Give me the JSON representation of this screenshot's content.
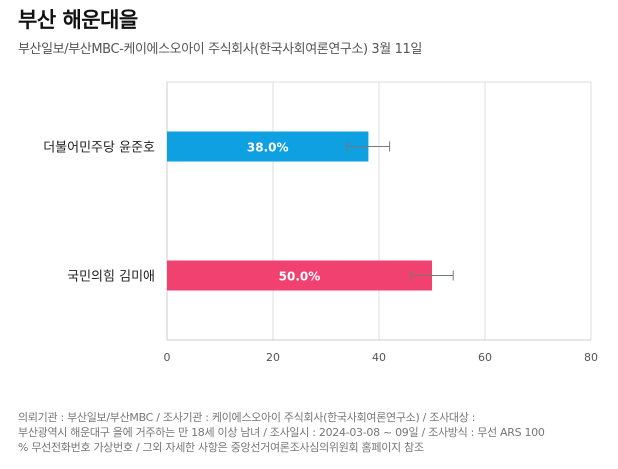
{
  "header": {
    "title": "부산 해운대을",
    "subtitle": "부산일보/부산MBC-케이에스오아이 주식회사(한국사회여론연구소) 3월 11일"
  },
  "chart_data": {
    "type": "bar",
    "orientation": "horizontal",
    "categories": [
      "더불어민주당 윤준호",
      "국민의힘 김미애"
    ],
    "values": [
      38.0,
      50.0
    ],
    "value_labels": [
      "38.0%",
      "50.0%"
    ],
    "error_bars": [
      [
        34.0,
        42.0
      ],
      [
        46.0,
        54.0
      ]
    ],
    "colors": [
      "#0ea0e0",
      "#f04170"
    ],
    "xlim": [
      0,
      80
    ],
    "xticks": [
      0,
      20,
      40,
      60,
      80
    ],
    "grid": true
  },
  "footer": {
    "lines": [
      "의뢰기관 : 부산일보/부산MBC / 조사기관 : 케이에스오아이 주식회사(한국사회여론연구소) / 조사대상 :",
      "부산광역시 해운대구 을에 거주하는 만 18세 이상 남녀 / 조사일시 : 2024-03-08 ~ 09일 / 조사방식 : 무선 ARS 100",
      "% 무선전화번호 가상번호 / 그외 자세한 사항은 중앙선거여론조사심의위원회 홈페이지 참조"
    ]
  }
}
